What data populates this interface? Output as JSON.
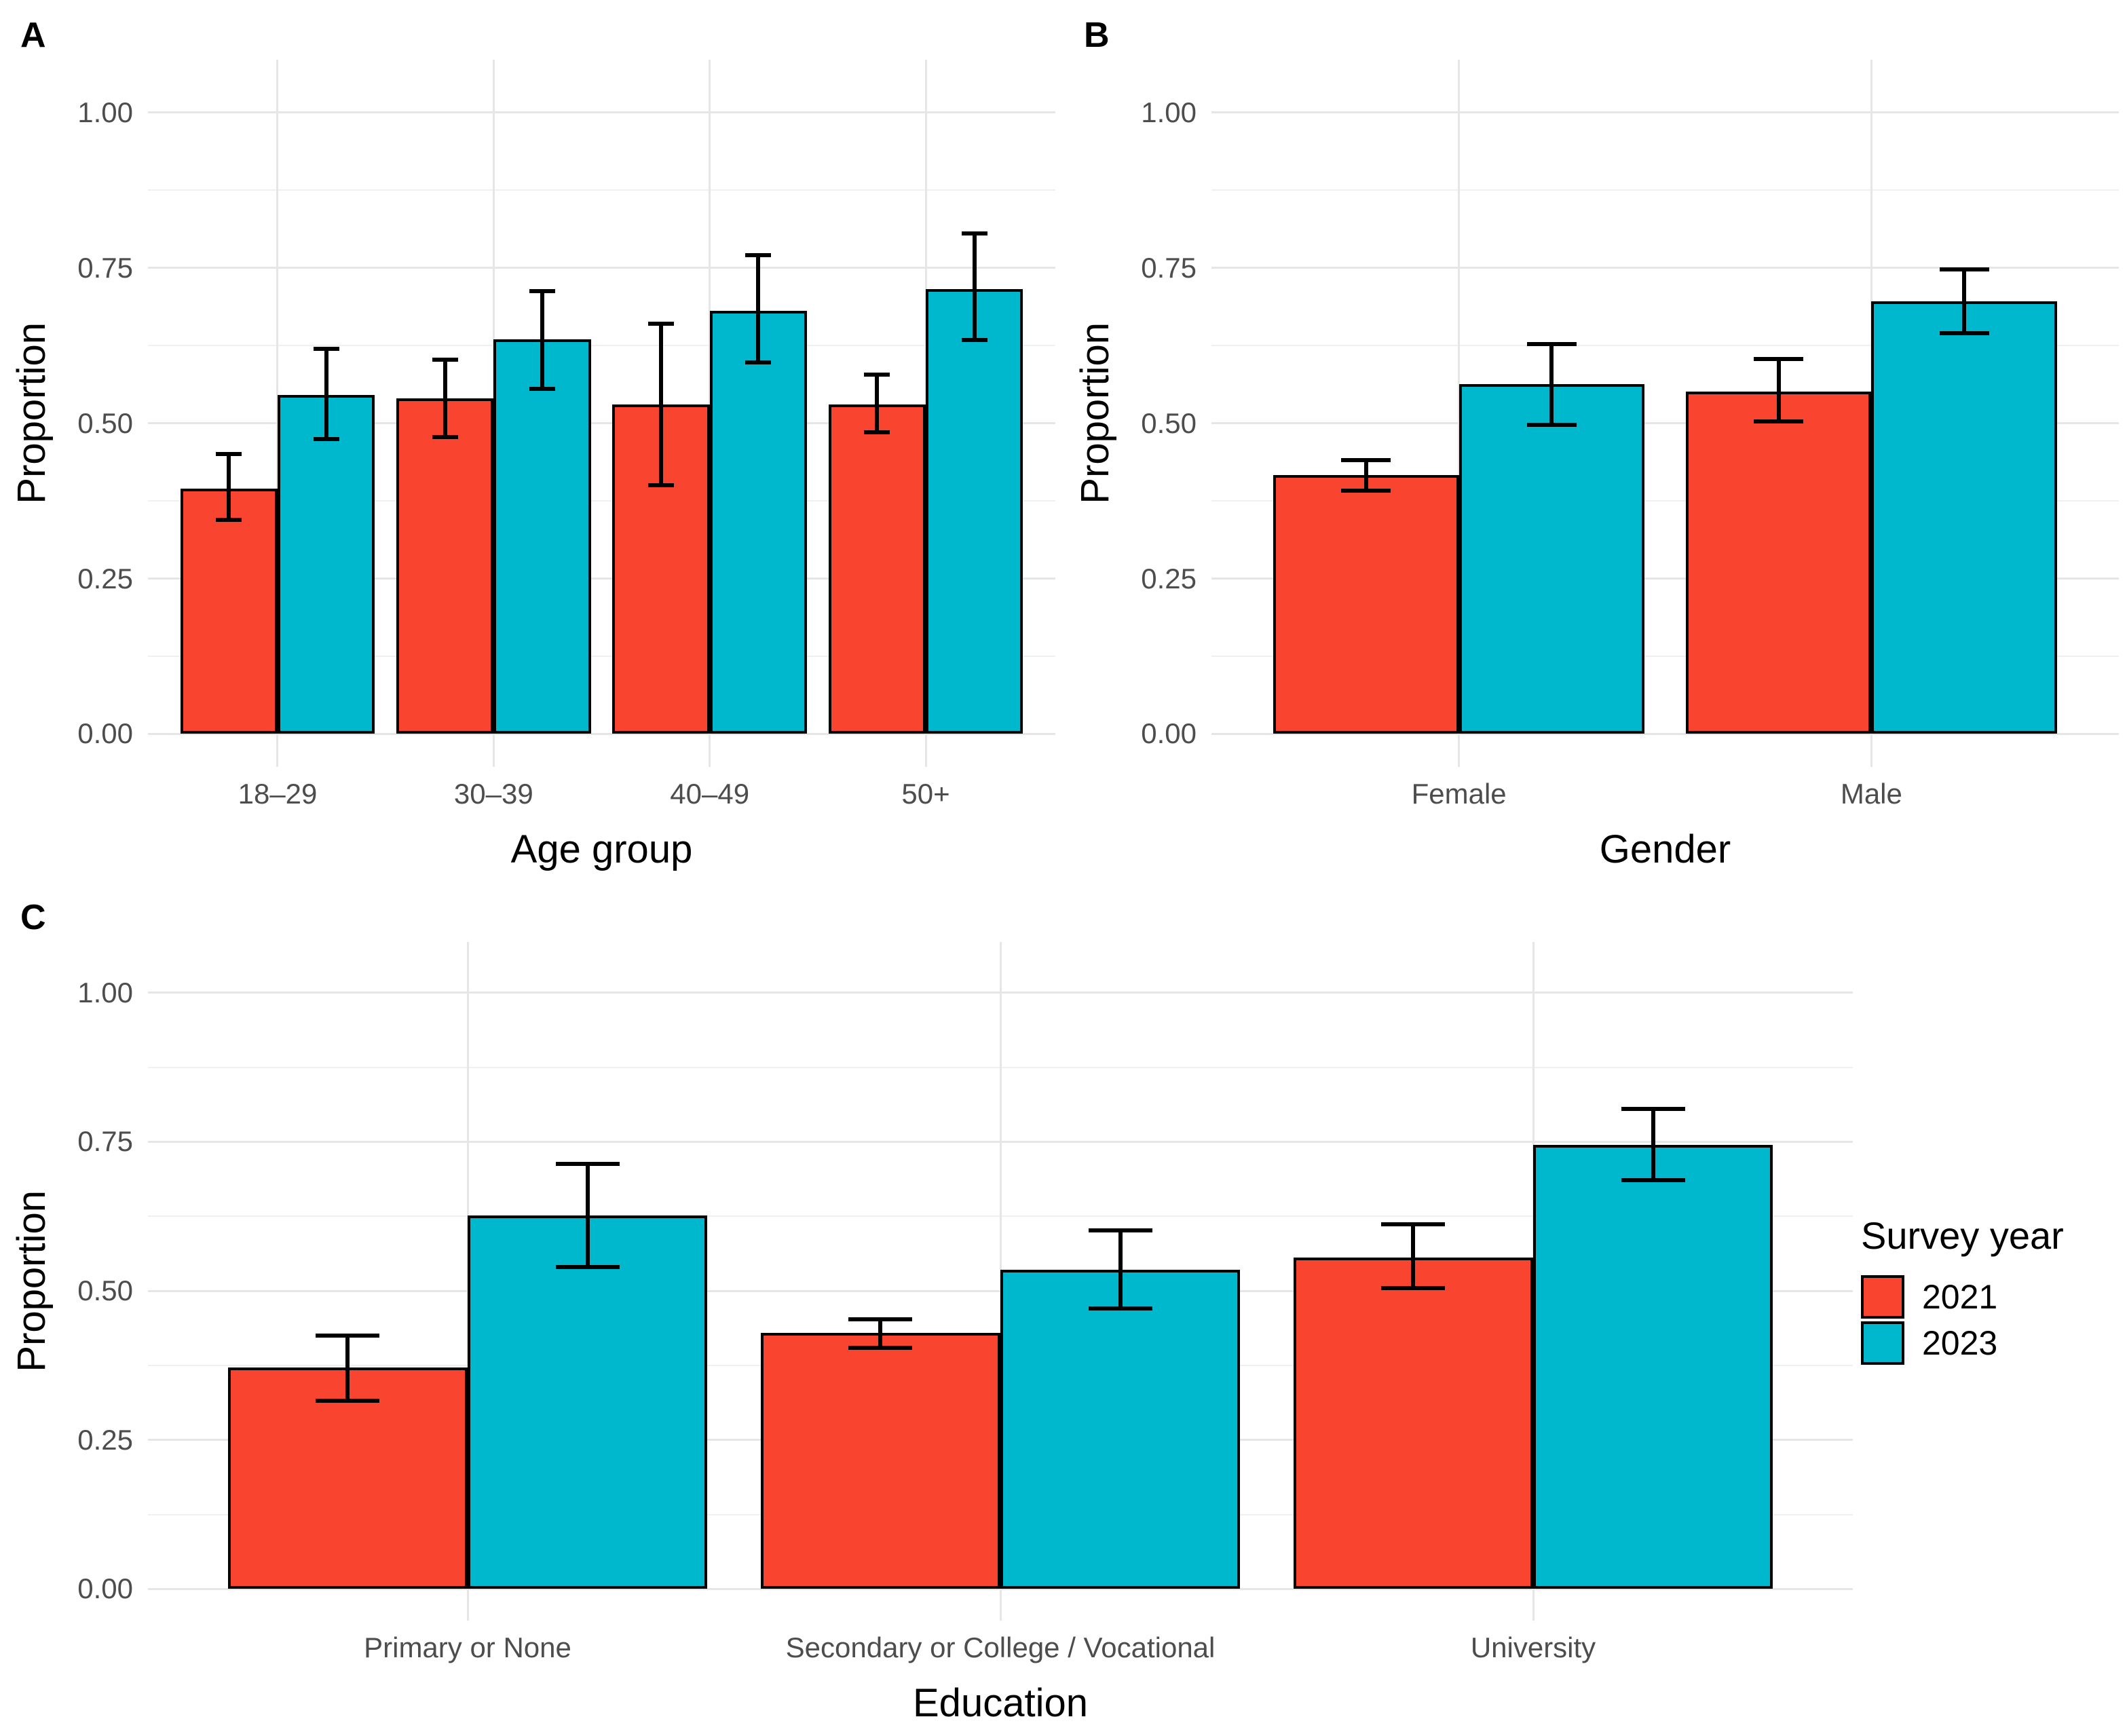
{
  "figure": {
    "background": "#FFFFFF",
    "tick_label_color": "#4D4D4D",
    "axis_title_color": "#000000",
    "grid_major_color": "#E6E6E6",
    "grid_minor_color": "#F0F0F0",
    "bar_border_color": "#000000",
    "errorbar_color": "#000000"
  },
  "legend": {
    "title": "Survey year",
    "position": "right-of-panel-c",
    "items": [
      {
        "label": "2021",
        "color": "#F94430"
      },
      {
        "label": "2023",
        "color": "#00B8CE"
      }
    ]
  },
  "chart_data": [
    {
      "type": "bar",
      "tag": "A",
      "xlabel": "Age group",
      "ylabel": "Proportion",
      "ylim": [
        0,
        1.0
      ],
      "grid": "major and minor horizontal, major vertical at category centers",
      "y_ticks": [
        {
          "value": 0.0,
          "label": "0.00"
        },
        {
          "value": 0.25,
          "label": "0.25"
        },
        {
          "value": 0.5,
          "label": "0.50"
        },
        {
          "value": 0.75,
          "label": "0.75"
        },
        {
          "value": 1.0,
          "label": "1.00"
        }
      ],
      "categories": [
        "18–29",
        "30–39",
        "40–49",
        "50+"
      ],
      "series": [
        {
          "name": "2021",
          "values": [
            0.395,
            0.54,
            0.53,
            0.53
          ],
          "ci_low": [
            0.345,
            0.478,
            0.4,
            0.485
          ],
          "ci_high": [
            0.45,
            0.602,
            0.66,
            0.578
          ]
        },
        {
          "name": "2023",
          "values": [
            0.545,
            0.635,
            0.681,
            0.716
          ],
          "ci_low": [
            0.475,
            0.555,
            0.598,
            0.634
          ],
          "ci_high": [
            0.62,
            0.713,
            0.77,
            0.805
          ]
        }
      ]
    },
    {
      "type": "bar",
      "tag": "B",
      "xlabel": "Gender",
      "ylabel": "Proportion",
      "ylim": [
        0,
        1.0
      ],
      "grid": "major and minor horizontal, major vertical at category centers",
      "y_ticks": [
        {
          "value": 0.0,
          "label": "0.00"
        },
        {
          "value": 0.25,
          "label": "0.25"
        },
        {
          "value": 0.5,
          "label": "0.50"
        },
        {
          "value": 0.75,
          "label": "0.75"
        },
        {
          "value": 1.0,
          "label": "1.00"
        }
      ],
      "categories": [
        "Female",
        "Male"
      ],
      "series": [
        {
          "name": "2021",
          "values": [
            0.417,
            0.551
          ],
          "ci_low": [
            0.392,
            0.503
          ],
          "ci_high": [
            0.441,
            0.603
          ]
        },
        {
          "name": "2023",
          "values": [
            0.563,
            0.696
          ],
          "ci_low": [
            0.497,
            0.645
          ],
          "ci_high": [
            0.627,
            0.748
          ]
        }
      ]
    },
    {
      "type": "bar",
      "tag": "C",
      "xlabel": "Education",
      "ylabel": "Proportion",
      "ylim": [
        0,
        1.0
      ],
      "grid": "major and minor horizontal, major vertical at category centers",
      "y_ticks": [
        {
          "value": 0.0,
          "label": "0.00"
        },
        {
          "value": 0.25,
          "label": "0.25"
        },
        {
          "value": 0.5,
          "label": "0.50"
        },
        {
          "value": 0.75,
          "label": "0.75"
        },
        {
          "value": 1.0,
          "label": "1.00"
        }
      ],
      "categories": [
        "Primary or None",
        "Secondary or College / Vocational",
        "University"
      ],
      "series": [
        {
          "name": "2021",
          "values": [
            0.372,
            0.43,
            0.556
          ],
          "ci_low": [
            0.316,
            0.405,
            0.505
          ],
          "ci_high": [
            0.425,
            0.452,
            0.612
          ]
        },
        {
          "name": "2023",
          "values": [
            0.626,
            0.535,
            0.745
          ],
          "ci_low": [
            0.54,
            0.47,
            0.685
          ],
          "ci_high": [
            0.713,
            0.601,
            0.805
          ]
        }
      ]
    }
  ]
}
